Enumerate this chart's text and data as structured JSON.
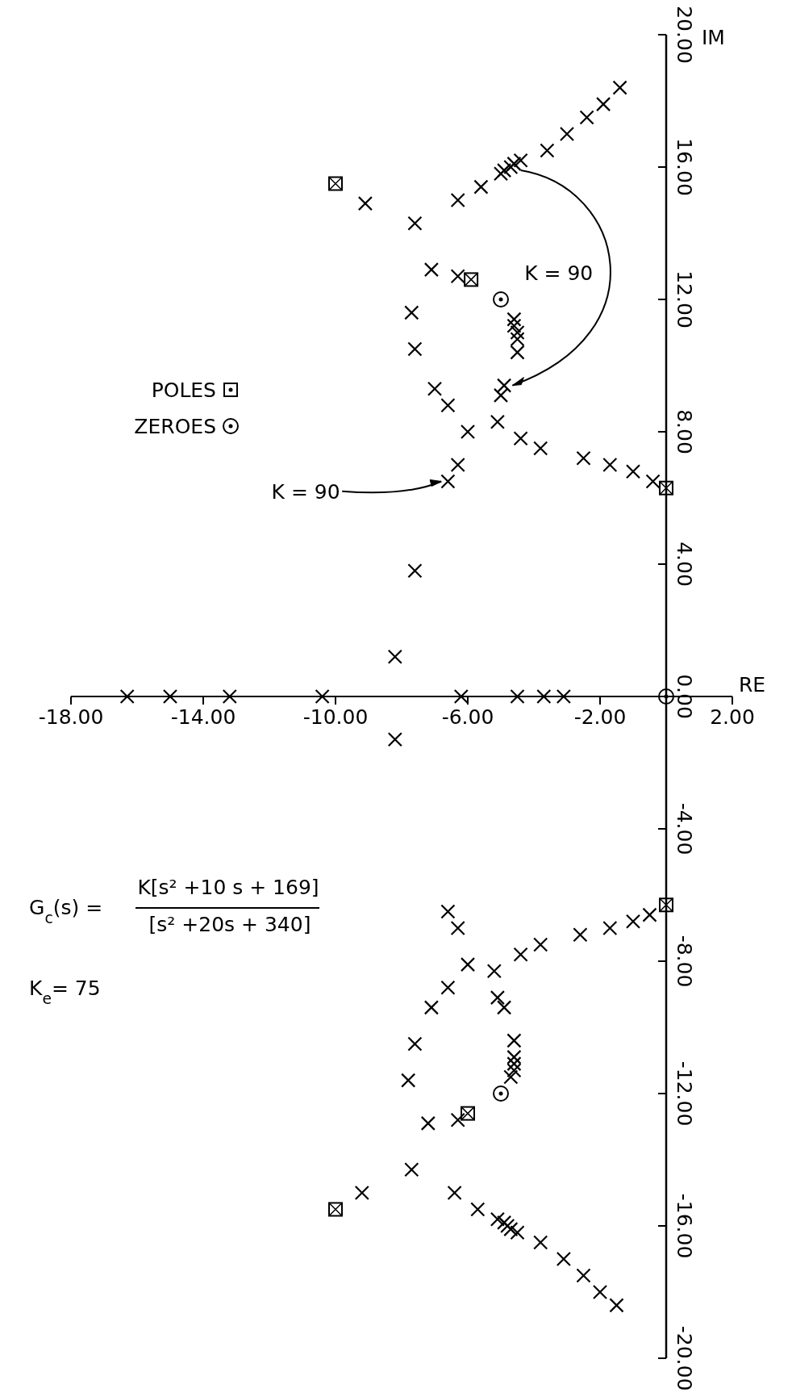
{
  "chart_data": {
    "type": "scatter",
    "xlabel": "RE",
    "ylabel": "IM",
    "xlim": [
      -18,
      2
    ],
    "ylim": [
      -20,
      20
    ],
    "xticks": [
      {
        "value": -18,
        "label": "-18.00"
      },
      {
        "value": -14,
        "label": "-14.00"
      },
      {
        "value": -10,
        "label": "-10.00"
      },
      {
        "value": -6,
        "label": "-6.00"
      },
      {
        "value": -2,
        "label": "-2.00"
      },
      {
        "value": 2,
        "label": "2.00"
      }
    ],
    "yticks": [
      {
        "value": -20,
        "label": "-20.00"
      },
      {
        "value": -16,
        "label": "-16.00"
      },
      {
        "value": -12,
        "label": "-12.00"
      },
      {
        "value": -8,
        "label": "-8.00"
      },
      {
        "value": -4,
        "label": "-4.00"
      },
      {
        "value": 0,
        "label": "0.00"
      },
      {
        "value": 4,
        "label": "4.00"
      },
      {
        "value": 8,
        "label": "8.00"
      },
      {
        "value": 12,
        "label": "12.00"
      },
      {
        "value": 16,
        "label": "16.00"
      },
      {
        "value": 20,
        "label": "20.00"
      }
    ],
    "grid": false,
    "legend": "left",
    "series": [
      {
        "color": "#000000",
        "marker": "cross",
        "x": [
          -1.4,
          -1.9,
          -2.4,
          -3.0,
          -3.6,
          -4.4,
          -4.6,
          -4.7,
          -4.9,
          -5.0,
          -5.6,
          -6.3,
          -7.6,
          -9.1,
          -7.1,
          -6.3,
          -7.7,
          -7.6,
          -4.6,
          -4.6,
          -4.5,
          -4.5,
          -4.5,
          -4.9,
          -5.0,
          -7.0,
          -6.6,
          -6.0,
          -5.1,
          -4.4,
          -3.8,
          -2.5,
          -1.7,
          -1.0,
          -0.4,
          -6.3,
          -6.6,
          -7.6,
          -8.2,
          -8.2,
          -16.3,
          -15.0,
          -13.2,
          -10.4,
          -6.2,
          -4.5,
          -3.7,
          -3.1,
          -0.5,
          -1.0,
          -1.7,
          -2.6,
          -3.8,
          -4.4,
          -5.2,
          -6.0,
          -6.6,
          -6.3,
          -6.6,
          -7.1,
          -7.6,
          -7.8,
          -7.2,
          -6.3,
          -5.1,
          -4.9,
          -4.6,
          -4.6,
          -4.6,
          -4.6,
          -4.7,
          -7.7,
          -9.2,
          -6.4,
          -5.7,
          -5.1,
          -4.9,
          -4.8,
          -4.7,
          -4.5,
          -3.8,
          -3.1,
          -2.5,
          -2.0,
          -1.5
        ],
        "values": [
          18.4,
          17.9,
          17.5,
          17.0,
          16.5,
          16.2,
          16.1,
          16.0,
          15.9,
          15.8,
          15.4,
          15.0,
          14.3,
          14.9,
          12.9,
          12.7,
          11.6,
          10.5,
          11.4,
          11.2,
          11.0,
          10.8,
          10.4,
          9.4,
          9.1,
          9.3,
          8.8,
          8.0,
          8.3,
          7.8,
          7.5,
          7.2,
          7.0,
          6.8,
          6.5,
          7.0,
          6.5,
          3.8,
          1.2,
          -1.3,
          0,
          0,
          0,
          0,
          0,
          0,
          0,
          0,
          -6.6,
          -6.8,
          -7.0,
          -7.2,
          -7.5,
          -7.8,
          -8.3,
          -8.1,
          -6.5,
          -7.0,
          -8.8,
          -9.4,
          -10.5,
          -11.6,
          -12.9,
          -12.8,
          -9.1,
          -9.4,
          -10.4,
          -10.9,
          -11.1,
          -11.3,
          -11.5,
          -14.3,
          -15.0,
          -15.0,
          -15.5,
          -15.8,
          -15.9,
          -16.0,
          -16.1,
          -16.2,
          -16.5,
          -17.0,
          -17.5,
          -18.0,
          -18.4
        ]
      },
      {
        "name": "POLES",
        "color": "#000000",
        "marker": "square",
        "x": [
          -10,
          -5.9,
          0,
          0,
          -6.0,
          -10
        ],
        "values": [
          15.5,
          12.6,
          6.3,
          -6.3,
          -12.6,
          -15.5
        ]
      },
      {
        "name": "ZEROES",
        "color": "#000000",
        "marker": "circle",
        "x": [
          -5,
          0,
          -5
        ],
        "values": [
          12,
          0,
          -12
        ]
      }
    ],
    "annotations": [
      "K = 90",
      {
        "text": "K = 90",
        "x": -6.6,
        "y": 6.5
      },
      "G$_{c}$(s) =",
      "K[s² +10 s + 169]",
      "[s² +20s + 340]",
      "K$_{e}$= 75"
    ]
  }
}
